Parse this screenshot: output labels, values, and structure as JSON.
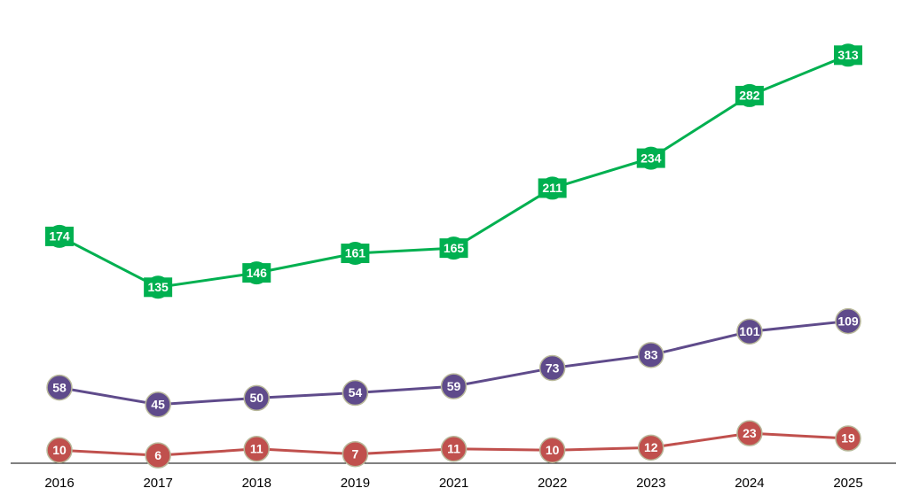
{
  "chart_data": {
    "type": "line",
    "categories": [
      "2016",
      "2017",
      "2018",
      "2019",
      "2021",
      "2022",
      "2023",
      "2024",
      "2025"
    ],
    "series": [
      {
        "color": "#00b050",
        "marker": "square",
        "values": [
          174,
          135,
          146,
          161,
          165,
          211,
          234,
          282,
          313
        ]
      },
      {
        "color": "#5f4b8b",
        "marker": "circle",
        "values": [
          58,
          45,
          50,
          54,
          59,
          73,
          83,
          101,
          109
        ]
      },
      {
        "color": "#c0504d",
        "marker": "circle",
        "values": [
          10,
          6,
          11,
          7,
          11,
          10,
          12,
          23,
          19
        ]
      }
    ],
    "ylim": [
      0,
      320
    ]
  }
}
